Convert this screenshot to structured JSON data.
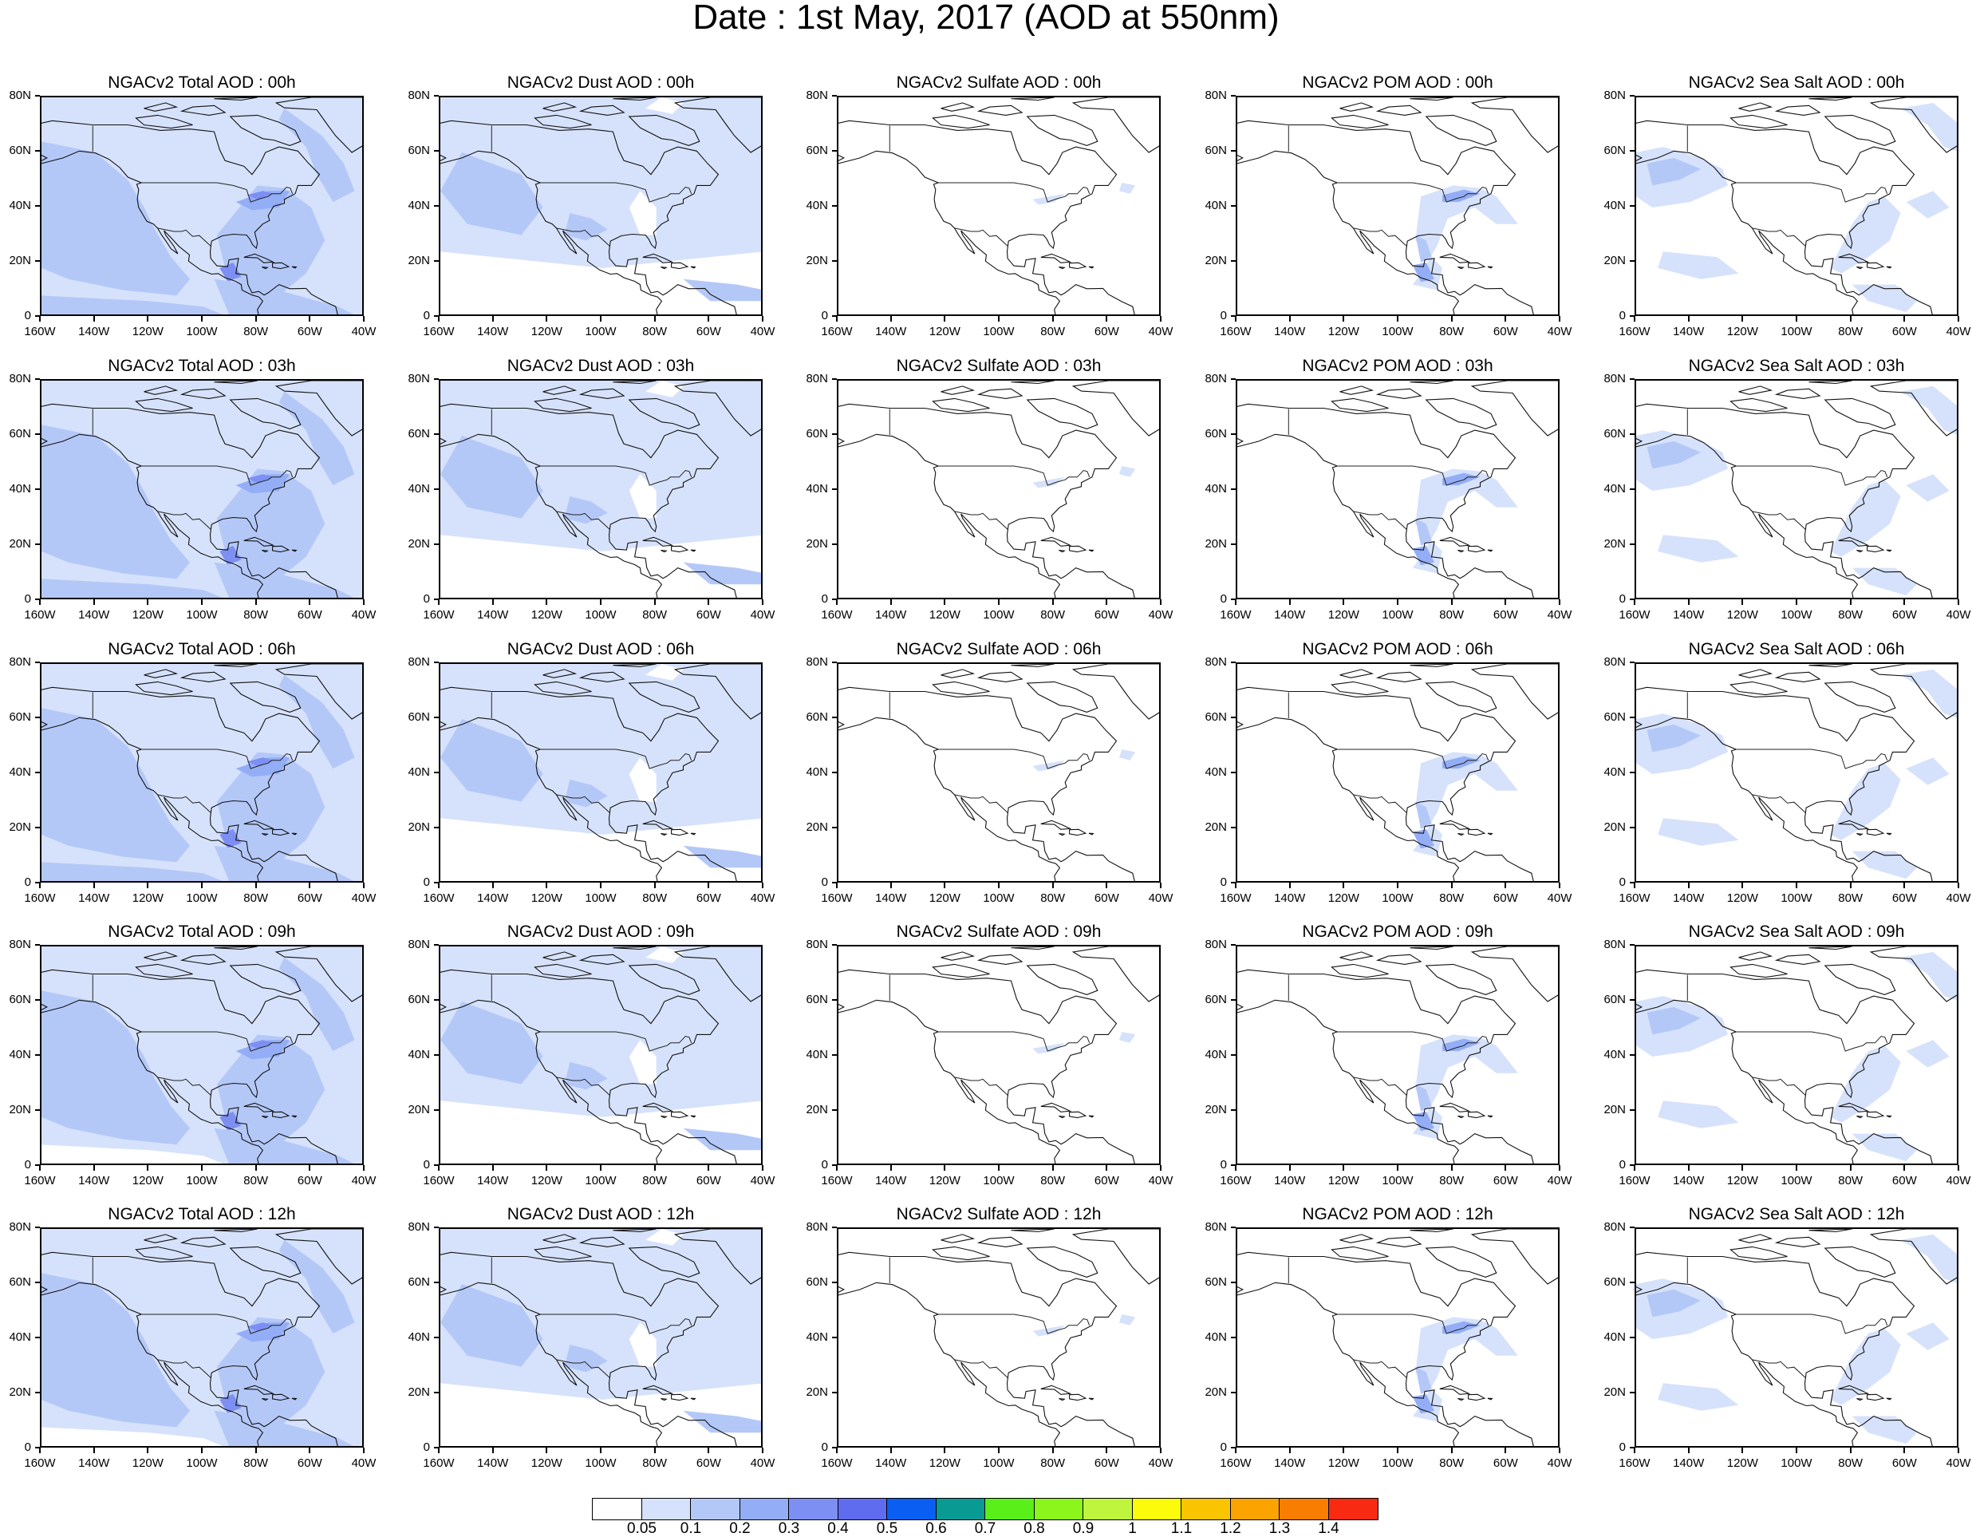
{
  "title": "Date : 1st May, 2017 (AOD at 550nm)",
  "panels": [
    [
      "NGACv2 Total AOD : 00h",
      "NGACv2 Dust AOD : 00h",
      "NGACv2 Sulfate AOD : 00h",
      "NGACv2 POM AOD : 00h",
      "NGACv2 Sea Salt AOD : 00h"
    ],
    [
      "NGACv2 Total AOD : 03h",
      "NGACv2 Dust AOD : 03h",
      "NGACv2 Sulfate AOD : 03h",
      "NGACv2 POM AOD : 03h",
      "NGACv2 Sea Salt AOD : 03h"
    ],
    [
      "NGACv2 Total AOD : 06h",
      "NGACv2 Dust AOD : 06h",
      "NGACv2 Sulfate AOD : 06h",
      "NGACv2 POM AOD : 06h",
      "NGACv2 Sea Salt AOD : 06h"
    ],
    [
      "NGACv2 Total AOD : 09h",
      "NGACv2 Dust AOD : 09h",
      "NGACv2 Sulfate AOD : 09h",
      "NGACv2 POM AOD : 09h",
      "NGACv2 Sea Salt  AOD : 09h"
    ],
    [
      "NGACv2 Total AOD  : 12h",
      "NGACv2 Dust AOD : 12h",
      "NGACv2 Sulfate AOD : 12h",
      "NGACv2 POM  AOD : 12h",
      "NGACv2 Sea Salt  AOD : 12h"
    ]
  ],
  "lat_labels": [
    "80N",
    "60N",
    "40N",
    "20N",
    "0"
  ],
  "lon_labels": [
    "160W",
    "140W",
    "120W",
    "100W",
    "80W",
    "60W",
    "40W"
  ],
  "colorbar": {
    "colors": [
      "#ffffff",
      "#d6e2fb",
      "#b4c8f8",
      "#93adf6",
      "#7d8ff3",
      "#5f6cf0",
      "#0a5ff2",
      "#0a9a94",
      "#5bef1a",
      "#8cf51c",
      "#c0f53d",
      "#fdfb0c",
      "#fbc400",
      "#fba400",
      "#f97d00",
      "#f82a12"
    ],
    "labels": [
      "0.05",
      "0.1",
      "0.2",
      "0.3",
      "0.4",
      "0.5",
      "0.6",
      "0.7",
      "0.8",
      "0.9",
      "1",
      "1.1",
      "1.2",
      "1.3",
      "1.4"
    ]
  }
}
